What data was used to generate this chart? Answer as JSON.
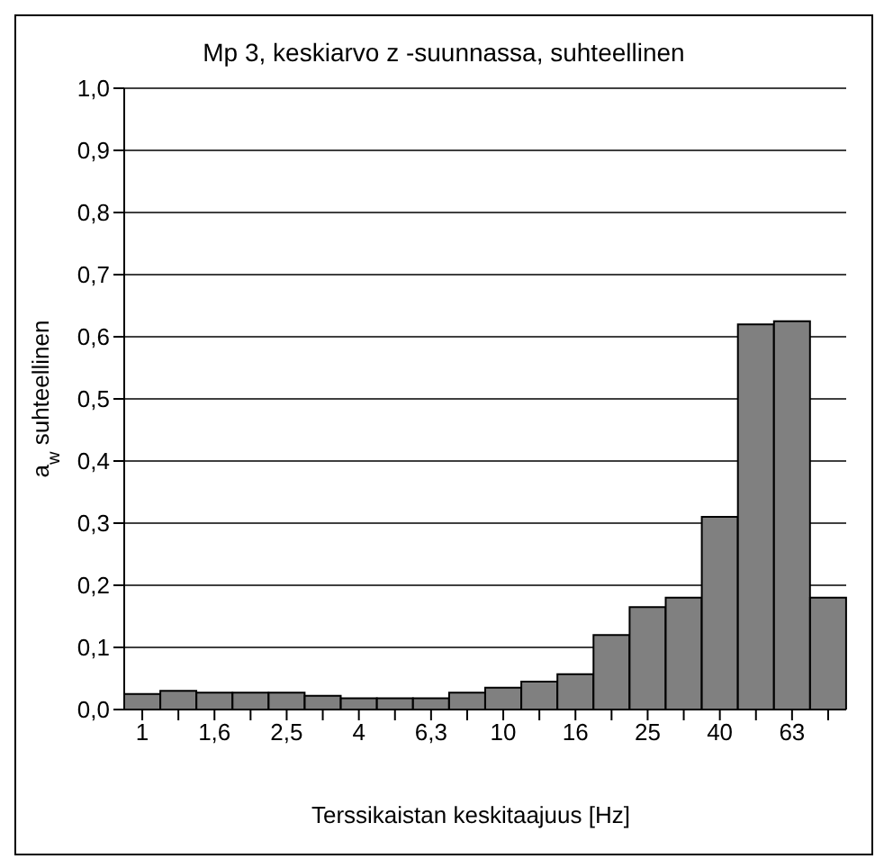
{
  "chart_data": {
    "type": "bar",
    "title": "Mp 3, keskiarvo z -suunnassa, suhteellinen",
    "xlabel": "Terssikaistan keskitaajuus [Hz]",
    "ylabel": "a$_{w}$  suhteellinen",
    "categories": [
      "1",
      null,
      "1,6",
      null,
      "2,5",
      null,
      "4",
      null,
      "6,3",
      null,
      "10",
      null,
      "16",
      null,
      "25",
      null,
      "40",
      null,
      "63",
      null
    ],
    "values": [
      0.025,
      0.03,
      0.027,
      0.027,
      0.027,
      0.022,
      0.018,
      0.018,
      0.018,
      0.027,
      0.035,
      0.045,
      0.057,
      0.12,
      0.165,
      0.18,
      0.31,
      0.62,
      0.625,
      0.18
    ],
    "color": "#808080",
    "ylim": [
      0,
      1
    ],
    "yticks": [
      {
        "value": 0,
        "label": "0,0"
      },
      {
        "value": 0.1,
        "label": "0,1"
      },
      {
        "value": 0.2,
        "label": "0,2"
      },
      {
        "value": 0.3,
        "label": "0,3"
      },
      {
        "value": 0.4,
        "label": "0,4"
      },
      {
        "value": 0.5,
        "label": "0,5"
      },
      {
        "value": 0.6,
        "label": "0,6"
      },
      {
        "value": 0.7,
        "label": "0,7"
      },
      {
        "value": 0.8,
        "label": "0,8"
      },
      {
        "value": 0.9,
        "label": "0,9"
      },
      {
        "value": 1,
        "label": "1,0"
      }
    ],
    "grid": "y"
  }
}
